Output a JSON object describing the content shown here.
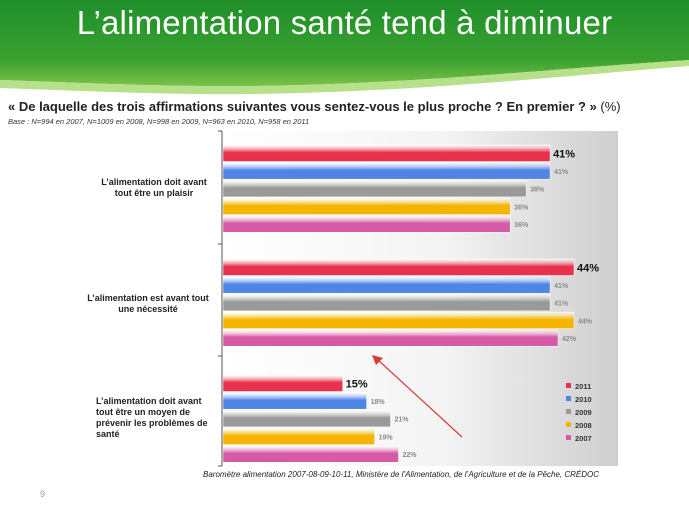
{
  "slide": {
    "title": "L’alimentation santé tend à diminuer",
    "question": "« De laquelle des trois affirmations suivantes vous sentez-vous le plus proche ? En premier ? »",
    "question_unit": "(%)",
    "base": "Base : N=994 en 2007, N=1009 en 2008, N=998 en 2009, N=963 en 2010, N=958  en 2011",
    "source": "Baromètre alimentation 2007-08-09-10-11,  Ministère de l’Alimentation, de l’Agriculture et de la Pêche, CRÉDOC",
    "page_number": "9"
  },
  "colors": {
    "header_green": "#3aa12f",
    "header_light": "#9fd46a",
    "2011": "#e8324b",
    "2010": "#4f86e6",
    "2009": "#9a9a9a",
    "2008": "#f5b400",
    "2007": "#d65aa5",
    "arrow": "#d63a3a"
  },
  "chart_data": {
    "type": "bar",
    "orientation": "horizontal",
    "categories": [
      "L’alimentation doit avant tout être un plaisir",
      "L’alimentation est avant tout une nécessité",
      "L’alimentation doit avant tout être un moyen de prévenir les problèmes de santé"
    ],
    "series": [
      {
        "name": "2011",
        "values": [
          41,
          44,
          15
        ],
        "labels": [
          "41%",
          "44%",
          "15%"
        ]
      },
      {
        "name": "2010",
        "values": [
          41,
          41,
          18
        ],
        "labels": [
          "41%",
          "41%",
          "18%"
        ]
      },
      {
        "name": "2009",
        "values": [
          38,
          41,
          21
        ],
        "labels": [
          "38%",
          "41%",
          "21%"
        ]
      },
      {
        "name": "2008",
        "values": [
          36,
          44,
          19
        ],
        "labels": [
          "36%",
          "44%",
          "19%"
        ]
      },
      {
        "name": "2007",
        "values": [
          36,
          42,
          22
        ],
        "labels": [
          "36%",
          "42%",
          "22%"
        ]
      }
    ],
    "legend_position": "bottom-right",
    "xlim": [
      0,
      50
    ]
  }
}
